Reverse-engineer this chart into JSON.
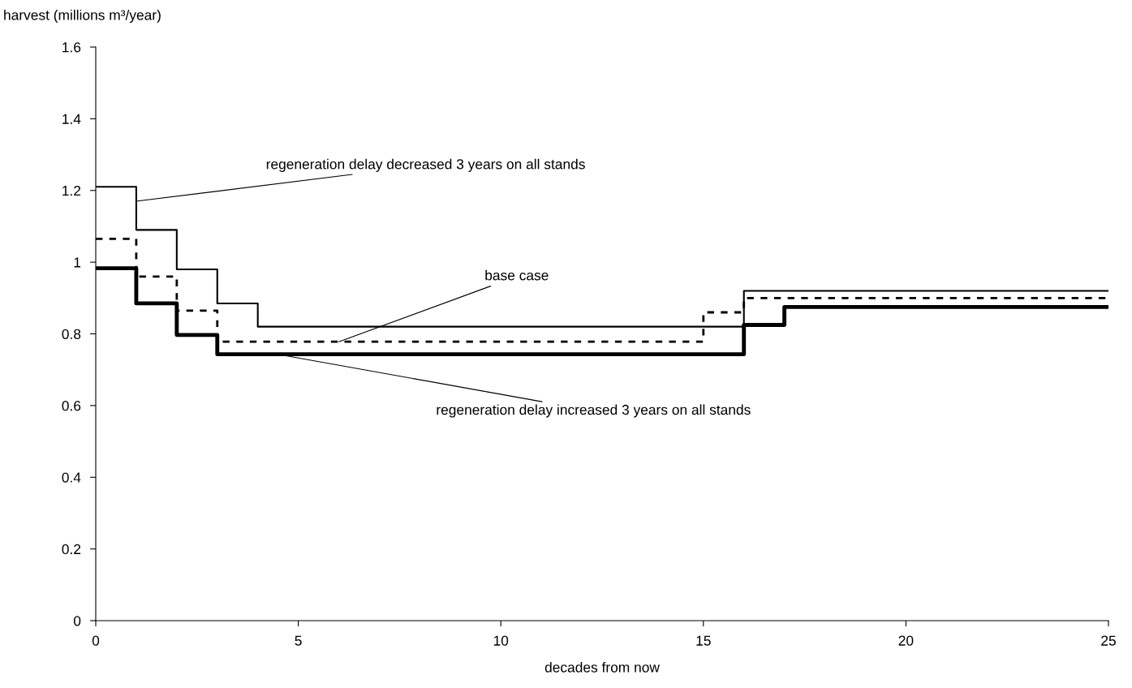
{
  "chart_data": {
    "type": "step",
    "xlabel": "decades from now",
    "ylabel": "harvest (millions m³/year)",
    "xlim": [
      0,
      25
    ],
    "xticks": [
      0,
      5,
      10,
      15,
      20,
      25
    ],
    "ylim": [
      0,
      1.6
    ],
    "yticks": [
      0,
      0.2,
      0.4,
      0.6,
      0.8,
      1,
      1.2,
      1.4,
      1.6
    ],
    "grid": false,
    "legend": false,
    "series": [
      {
        "color": "#000000",
        "line_style": "solid",
        "x": [
          0,
          1,
          2,
          3,
          4,
          15,
          16,
          17,
          25
        ],
        "values": [
          1.21,
          1.09,
          0.98,
          0.885,
          0.82,
          0.82,
          0.92,
          0.92,
          0.92
        ]
      },
      {
        "color": "#000000",
        "line_style": "dashed",
        "x": [
          0,
          1,
          2,
          3,
          4,
          15,
          16,
          17,
          25
        ],
        "values": [
          1.065,
          0.96,
          0.865,
          0.778,
          0.778,
          0.86,
          0.9,
          0.9,
          0.9
        ]
      },
      {
        "color": "#000000",
        "line_style": "solid",
        "x": [
          0,
          1,
          2,
          3,
          4,
          15,
          16,
          17,
          25
        ],
        "values": [
          0.983,
          0.885,
          0.797,
          0.743,
          0.743,
          0.743,
          0.825,
          0.875,
          0.875
        ]
      }
    ],
    "annotations": [
      {
        "text": "regeneration delay decreased 3 years on all stands",
        "x": 1,
        "y": 1.17
      },
      {
        "text": "base case",
        "x": 6,
        "y": 0.778
      },
      {
        "text": "regeneration delay increased 3 years on all stands",
        "x": 4.5,
        "y": 0.743
      }
    ]
  }
}
